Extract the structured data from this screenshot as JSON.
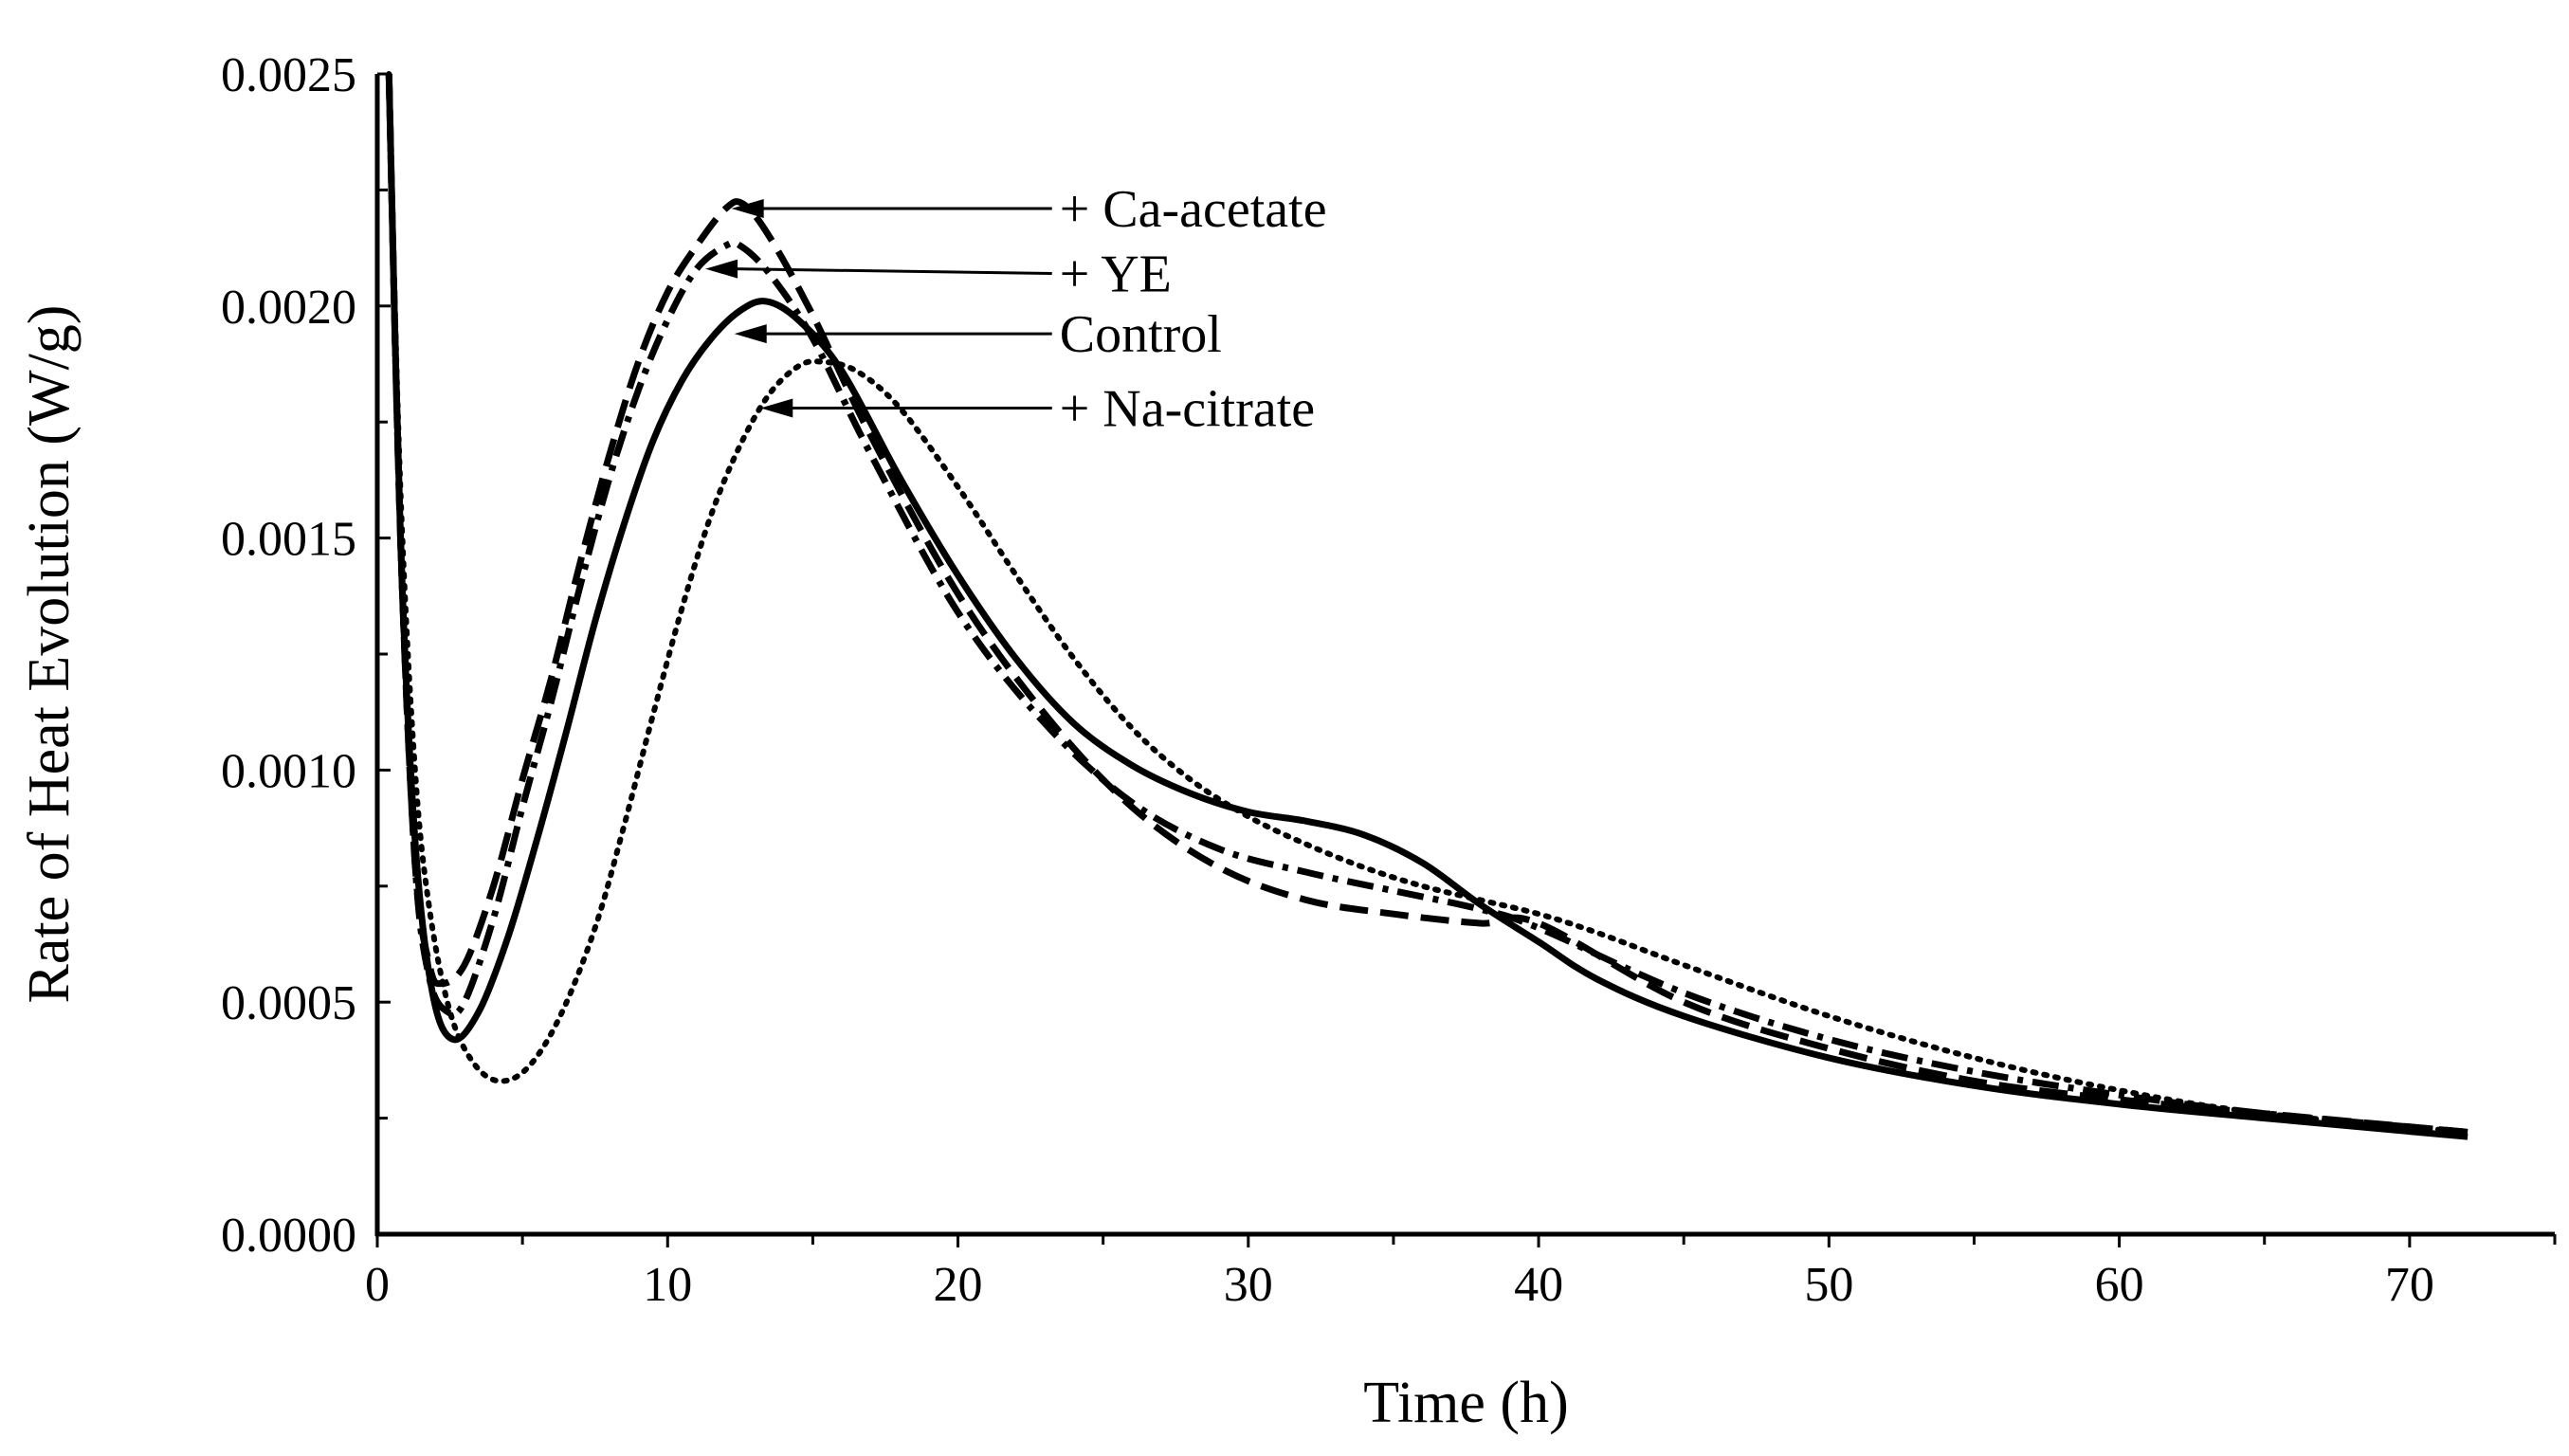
{
  "chart_data": {
    "type": "line",
    "title": "",
    "xlabel": "Time (h)",
    "ylabel": "Rate of Heat Evolution (W/g)",
    "xlim": [
      0,
      75
    ],
    "ylim": [
      0,
      0.0025
    ],
    "xticks": [
      0,
      10,
      20,
      30,
      40,
      50,
      60,
      70
    ],
    "xtick_labels": [
      "0",
      "10",
      "20",
      "30",
      "40",
      "50",
      "60",
      "70"
    ],
    "yticks": [
      0,
      0.0005,
      0.001,
      0.0015,
      0.002,
      0.0025
    ],
    "ytick_labels": [
      "0.0000",
      "0.0005",
      "0.0010",
      "0.0015",
      "0.0020",
      "0.0025"
    ],
    "grid": false,
    "legend": "none",
    "series": [
      {
        "name": "+ Ca-acetate",
        "style": "dashed",
        "points": [
          [
            0.4,
            0.0025
          ],
          [
            0.8,
            0.0015
          ],
          [
            1.3,
            0.0008
          ],
          [
            1.8,
            0.00058
          ],
          [
            2.2,
            0.00054
          ],
          [
            3,
            0.00058
          ],
          [
            4,
            0.00075
          ],
          [
            5,
            0.00098
          ],
          [
            6,
            0.0012
          ],
          [
            7,
            0.00145
          ],
          [
            8,
            0.00168
          ],
          [
            9,
            0.00188
          ],
          [
            10,
            0.00203
          ],
          [
            11,
            0.00213
          ],
          [
            12,
            0.00221
          ],
          [
            12.6,
            0.00222
          ],
          [
            13.5,
            0.00215
          ],
          [
            15,
            0.00198
          ],
          [
            17,
            0.00172
          ],
          [
            20,
            0.00138
          ],
          [
            23,
            0.00112
          ],
          [
            26,
            0.00092
          ],
          [
            29,
            0.00079
          ],
          [
            32,
            0.00072
          ],
          [
            35,
            0.00069
          ],
          [
            38,
            0.00067
          ],
          [
            40,
            0.00067
          ],
          [
            45,
            0.0005
          ],
          [
            50,
            0.0004
          ],
          [
            55,
            0.00033
          ],
          [
            60,
            0.00029
          ],
          [
            65,
            0.00026
          ],
          [
            72,
            0.00022
          ]
        ]
      },
      {
        "name": "+ YE",
        "style": "dash-dot",
        "points": [
          [
            0.4,
            0.0025
          ],
          [
            0.8,
            0.0015
          ],
          [
            1.3,
            0.0008
          ],
          [
            1.8,
            0.00055
          ],
          [
            2.4,
            0.00048
          ],
          [
            3,
            0.0005
          ],
          [
            4,
            0.00068
          ],
          [
            5,
            0.00092
          ],
          [
            6,
            0.00115
          ],
          [
            7,
            0.0014
          ],
          [
            8,
            0.00163
          ],
          [
            9,
            0.00182
          ],
          [
            10,
            0.00197
          ],
          [
            11,
            0.00208
          ],
          [
            12,
            0.00213
          ],
          [
            12.5,
            0.00213
          ],
          [
            13.5,
            0.00207
          ],
          [
            15,
            0.00193
          ],
          [
            17,
            0.00168
          ],
          [
            20,
            0.00134
          ],
          [
            23,
            0.0011
          ],
          [
            26,
            0.00093
          ],
          [
            29,
            0.00083
          ],
          [
            32,
            0.00078
          ],
          [
            35,
            0.00074
          ],
          [
            38,
            0.0007
          ],
          [
            40,
            0.00066
          ],
          [
            45,
            0.00052
          ],
          [
            50,
            0.00042
          ],
          [
            55,
            0.00035
          ],
          [
            60,
            0.0003
          ],
          [
            65,
            0.00026
          ],
          [
            72,
            0.00022
          ]
        ]
      },
      {
        "name": "Control",
        "style": "solid",
        "points": [
          [
            0.4,
            0.0025
          ],
          [
            0.8,
            0.0015
          ],
          [
            1.3,
            0.00085
          ],
          [
            1.9,
            0.00052
          ],
          [
            2.6,
            0.00042
          ],
          [
            3.5,
            0.00048
          ],
          [
            4.5,
            0.00064
          ],
          [
            5.5,
            0.00085
          ],
          [
            6.5,
            0.00108
          ],
          [
            7.5,
            0.00132
          ],
          [
            8.5,
            0.00153
          ],
          [
            9.5,
            0.00171
          ],
          [
            10.5,
            0.00184
          ],
          [
            11.5,
            0.00193
          ],
          [
            12.5,
            0.00199
          ],
          [
            13.4,
            0.00201
          ],
          [
            14.5,
            0.00197
          ],
          [
            16,
            0.00186
          ],
          [
            18,
            0.00163
          ],
          [
            20,
            0.00142
          ],
          [
            22,
            0.00124
          ],
          [
            24,
            0.0011
          ],
          [
            26,
            0.00101
          ],
          [
            28,
            0.00095
          ],
          [
            30,
            0.00091
          ],
          [
            32,
            0.00089
          ],
          [
            34,
            0.00086
          ],
          [
            36,
            0.0008
          ],
          [
            38,
            0.00071
          ],
          [
            40,
            0.00063
          ],
          [
            42,
            0.00055
          ],
          [
            45,
            0.00047
          ],
          [
            50,
            0.00038
          ],
          [
            55,
            0.00032
          ],
          [
            60,
            0.00028
          ],
          [
            65,
            0.00025
          ],
          [
            72,
            0.00021
          ]
        ]
      },
      {
        "name": "+ Na-citrate",
        "style": "dotted",
        "points": [
          [
            0.4,
            0.0025
          ],
          [
            0.8,
            0.0016
          ],
          [
            1.3,
            0.001
          ],
          [
            1.8,
            0.0007
          ],
          [
            2.5,
            0.00048
          ],
          [
            3.3,
            0.00037
          ],
          [
            4.2,
            0.00033
          ],
          [
            5.2,
            0.00036
          ],
          [
            6.3,
            0.00047
          ],
          [
            7.5,
            0.00066
          ],
          [
            8.5,
            0.00088
          ],
          [
            9.5,
            0.00112
          ],
          [
            10.5,
            0.00135
          ],
          [
            11.5,
            0.00155
          ],
          [
            12.5,
            0.0017
          ],
          [
            13.5,
            0.00181
          ],
          [
            14.5,
            0.00187
          ],
          [
            15.3,
            0.00188
          ],
          [
            16.5,
            0.00186
          ],
          [
            18,
            0.00178
          ],
          [
            20,
            0.00161
          ],
          [
            22,
            0.00142
          ],
          [
            24,
            0.00124
          ],
          [
            26,
            0.00109
          ],
          [
            28,
            0.00098
          ],
          [
            30,
            0.0009
          ],
          [
            32,
            0.00084
          ],
          [
            34,
            0.00079
          ],
          [
            36,
            0.00075
          ],
          [
            38,
            0.00072
          ],
          [
            40,
            0.00069
          ],
          [
            42,
            0.00065
          ],
          [
            45,
            0.00058
          ],
          [
            50,
            0.00047
          ],
          [
            55,
            0.00038
          ],
          [
            60,
            0.00031
          ],
          [
            65,
            0.00026
          ],
          [
            72,
            0.00022
          ]
        ]
      }
    ],
    "annotations": [
      {
        "text": "+ Ca-acetate",
        "series": "+ Ca-acetate",
        "target": [
          12.2,
          0.00221
        ],
        "label_at": [
          23.5,
          0.00221
        ]
      },
      {
        "text": "+ YE",
        "series": "+ YE",
        "target": [
          11.3,
          0.00208
        ],
        "label_at": [
          23.5,
          0.00207
        ]
      },
      {
        "text": "Control",
        "series": "Control",
        "target": [
          12.3,
          0.00194
        ],
        "label_at": [
          23.5,
          0.00194
        ]
      },
      {
        "text": "+ Na-citrate",
        "series": "+ Na-citrate",
        "target": [
          13.2,
          0.00178
        ],
        "label_at": [
          23.5,
          0.00178
        ]
      }
    ]
  }
}
